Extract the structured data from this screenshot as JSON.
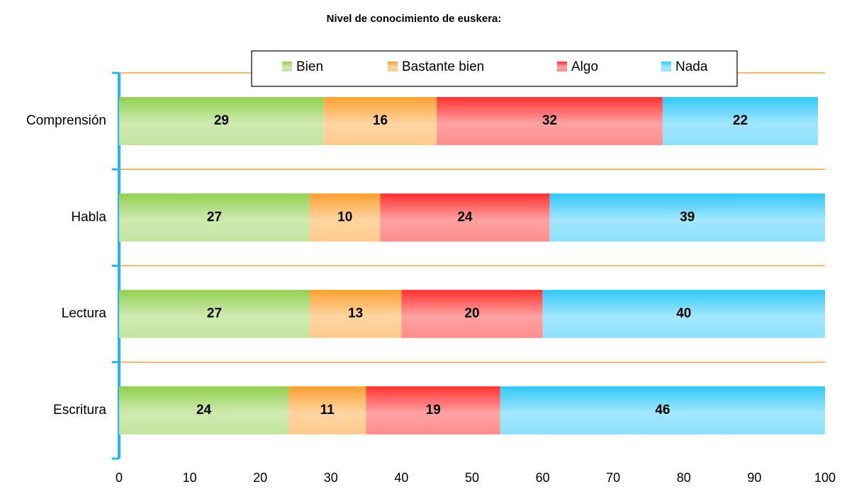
{
  "chart_data": {
    "type": "bar",
    "orientation": "horizontal",
    "stacked": true,
    "title": "Nivel de conocimiento de euskera:",
    "categories": [
      "Comprensión",
      "Habla",
      "Lectura",
      "Escritura"
    ],
    "series": [
      {
        "name": "Bien",
        "color": "#92d050",
        "values": [
          29,
          27,
          27,
          24
        ]
      },
      {
        "name": "Bastante bien",
        "color": "#ffa030",
        "values": [
          16,
          10,
          13,
          11
        ]
      },
      {
        "name": "Algo",
        "color": "#ff3030",
        "values": [
          32,
          24,
          20,
          19
        ]
      },
      {
        "name": "Nada",
        "color": "#30c8f8",
        "values": [
          22,
          39,
          40,
          46
        ]
      }
    ],
    "xlim": [
      0,
      100
    ],
    "xticks": [
      0,
      10,
      20,
      30,
      40,
      50,
      60,
      70,
      80,
      90,
      100
    ],
    "legend": "top",
    "grid": true
  }
}
